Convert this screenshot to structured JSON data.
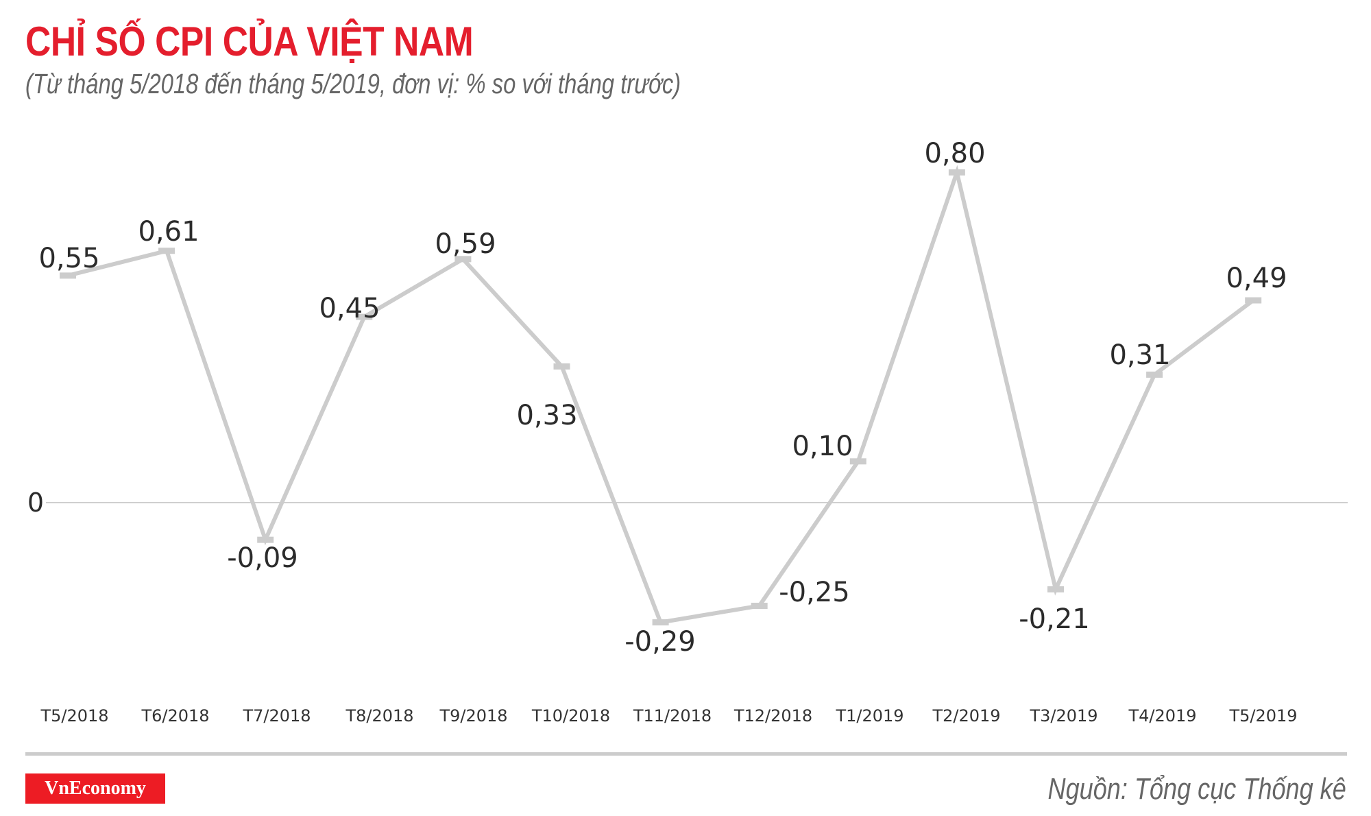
{
  "header": {
    "title": "CHỈ SỐ CPI CỦA VIỆT NAM",
    "subtitle": "(Từ tháng 5/2018 đến tháng 5/2019, đơn vị: % so với tháng trước)"
  },
  "footer": {
    "logo": "VnEconomy",
    "source": "Nguồn: Tổng cục Thống kê"
  },
  "colors": {
    "title": "#e41e2d",
    "line": "#cccccc",
    "logo_bg": "#ed1c24",
    "text": "#2b2b2b"
  },
  "chart_data": {
    "type": "line",
    "title": "CHỈ SỐ CPI CỦA VIỆT NAM",
    "subtitle": "(Từ tháng 5/2018 đến tháng 5/2019, đơn vị: % so với tháng trước)",
    "xlabel": "",
    "ylabel": "% so với tháng trước",
    "categories": [
      "T5/2018",
      "T6/2018",
      "T7/2018",
      "T8/2018",
      "T9/2018",
      "T10/2018",
      "T11/2018",
      "T12/2018",
      "T1/2019",
      "T2/2019",
      "T3/2019",
      "T4/2019",
      "T5/2019"
    ],
    "series": [
      {
        "name": "CPI",
        "values": [
          0.55,
          0.61,
          -0.09,
          0.45,
          0.59,
          0.33,
          -0.29,
          -0.25,
          0.1,
          0.8,
          -0.21,
          0.31,
          0.49
        ],
        "labels": [
          "0,55",
          "0,61",
          "-0,09",
          "0,45",
          "0,59",
          "0,33",
          "-0,29",
          "-0,25",
          "0,10",
          "0,80",
          "-0,21",
          "0,31",
          "0,49"
        ]
      }
    ],
    "zero_label": "0",
    "reference_lines": [
      0
    ],
    "grid": false,
    "legend": "none",
    "source": "Nguồn: Tổng cục Thống kê"
  }
}
